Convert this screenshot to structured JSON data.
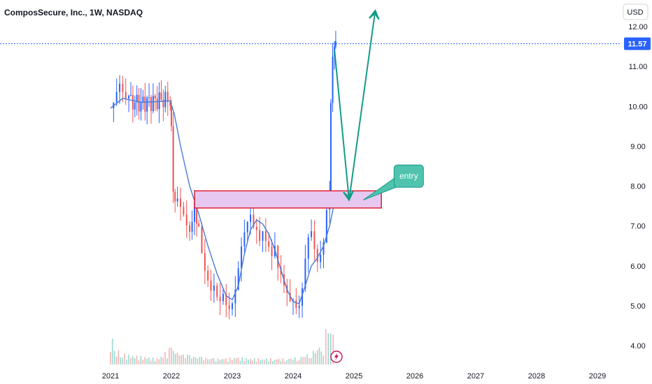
{
  "header": {
    "title": "ComposSecure, Inc., 1W, NASDAQ",
    "currency": "USD"
  },
  "colors": {
    "up": "#2962ff",
    "down": "#ef5350",
    "ma": "#4a7bd6",
    "volume_up": "#9ad9cf",
    "volume_down": "#f6b5b5",
    "zone_fill": "#e6c8f0",
    "zone_border": "#e0202e",
    "arrow": "#139c87",
    "callout": "#4fc3ae",
    "last_price_line": "#2962ff",
    "flash_icon": "#c2185b"
  },
  "flash_icon": "lightning-icon",
  "chart_data": {
    "type": "candlestick",
    "title": "ComposSecure, Inc., 1W, NASDAQ",
    "x_ticks": [
      "2021",
      "2022",
      "2023",
      "2024",
      "2025",
      "2026",
      "2027",
      "2028",
      "2029"
    ],
    "y_ticks": [
      "4.00",
      "5.00",
      "6.00",
      "7.00",
      "8.00",
      "9.00",
      "10.00",
      "11.00",
      "12.00"
    ],
    "ylim": [
      3.7,
      12.5
    ],
    "xlim": [
      2020.6,
      2029.4
    ],
    "last_price": 11.57,
    "last_price_label": "11.57",
    "grid": false,
    "price_path": [
      [
        2021.0,
        9.95
      ],
      [
        2021.05,
        10.1
      ],
      [
        2021.1,
        10.3
      ],
      [
        2021.15,
        10.45
      ],
      [
        2021.2,
        10.2
      ],
      [
        2021.25,
        10.0
      ],
      [
        2021.3,
        10.05
      ],
      [
        2021.4,
        10.1
      ],
      [
        2021.5,
        10.05
      ],
      [
        2021.6,
        10.1
      ],
      [
        2021.7,
        10.1
      ],
      [
        2021.8,
        10.15
      ],
      [
        2021.9,
        10.15
      ],
      [
        2021.98,
        10.15
      ],
      [
        2022.0,
        9.6
      ],
      [
        2022.03,
        8.0
      ],
      [
        2022.06,
        7.8
      ],
      [
        2022.1,
        7.9
      ],
      [
        2022.15,
        7.7
      ],
      [
        2022.2,
        7.5
      ],
      [
        2022.25,
        7.2
      ],
      [
        2022.3,
        7.0
      ],
      [
        2022.38,
        7.4
      ],
      [
        2022.45,
        6.8
      ],
      [
        2022.5,
        6.3
      ],
      [
        2022.55,
        5.8
      ],
      [
        2022.6,
        5.5
      ],
      [
        2022.65,
        5.2
      ],
      [
        2022.7,
        5.3
      ],
      [
        2022.75,
        5.0
      ],
      [
        2022.8,
        4.9
      ],
      [
        2022.85,
        5.1
      ],
      [
        2022.9,
        4.85
      ],
      [
        2022.95,
        4.8
      ],
      [
        2023.0,
        5.0
      ],
      [
        2023.05,
        5.4
      ],
      [
        2023.1,
        6.0
      ],
      [
        2023.15,
        6.6
      ],
      [
        2023.2,
        7.0
      ],
      [
        2023.25,
        7.3
      ],
      [
        2023.3,
        7.5
      ],
      [
        2023.35,
        7.2
      ],
      [
        2023.4,
        7.1
      ],
      [
        2023.45,
        6.8
      ],
      [
        2023.5,
        7.0
      ],
      [
        2023.55,
        6.7
      ],
      [
        2023.6,
        6.5
      ],
      [
        2023.65,
        6.2
      ],
      [
        2023.7,
        6.4
      ],
      [
        2023.75,
        5.8
      ],
      [
        2023.8,
        5.6
      ],
      [
        2023.85,
        5.3
      ],
      [
        2023.9,
        5.1
      ],
      [
        2023.95,
        4.9
      ],
      [
        2024.0,
        4.95
      ],
      [
        2024.05,
        4.8
      ],
      [
        2024.1,
        4.9
      ],
      [
        2024.15,
        5.4
      ],
      [
        2024.2,
        6.2
      ],
      [
        2024.25,
        6.8
      ],
      [
        2024.3,
        7.0
      ],
      [
        2024.35,
        6.6
      ],
      [
        2024.4,
        6.3
      ],
      [
        2024.45,
        6.5
      ],
      [
        2024.5,
        6.8
      ],
      [
        2024.55,
        7.6
      ],
      [
        2024.6,
        8.0
      ],
      [
        2024.62,
        10.2
      ],
      [
        2024.65,
        11.3
      ],
      [
        2024.68,
        11.5
      ],
      [
        2024.7,
        11.57
      ]
    ],
    "moving_average": [
      [
        2021.0,
        9.95
      ],
      [
        2021.2,
        10.2
      ],
      [
        2021.5,
        10.1
      ],
      [
        2021.8,
        10.12
      ],
      [
        2021.98,
        10.14
      ],
      [
        2022.05,
        9.8
      ],
      [
        2022.15,
        9.0
      ],
      [
        2022.3,
        8.0
      ],
      [
        2022.45,
        7.3
      ],
      [
        2022.6,
        6.5
      ],
      [
        2022.75,
        5.8
      ],
      [
        2022.9,
        5.25
      ],
      [
        2023.0,
        5.15
      ],
      [
        2023.1,
        5.5
      ],
      [
        2023.2,
        6.3
      ],
      [
        2023.3,
        6.9
      ],
      [
        2023.4,
        7.15
      ],
      [
        2023.5,
        7.05
      ],
      [
        2023.6,
        6.8
      ],
      [
        2023.7,
        6.4
      ],
      [
        2023.8,
        5.9
      ],
      [
        2023.9,
        5.4
      ],
      [
        2024.0,
        5.1
      ],
      [
        2024.1,
        5.05
      ],
      [
        2024.2,
        5.5
      ],
      [
        2024.3,
        6.0
      ],
      [
        2024.4,
        6.2
      ],
      [
        2024.5,
        6.5
      ],
      [
        2024.6,
        7.0
      ],
      [
        2024.68,
        7.6
      ]
    ],
    "volume": [
      [
        2021.0,
        0.5,
        1
      ],
      [
        2021.1,
        0.25,
        0
      ],
      [
        2021.2,
        0.18,
        1
      ],
      [
        2021.4,
        0.15,
        0
      ],
      [
        2021.6,
        0.12,
        1
      ],
      [
        2021.8,
        0.1,
        0
      ],
      [
        2022.0,
        0.3,
        1
      ],
      [
        2022.1,
        0.2,
        0
      ],
      [
        2022.3,
        0.15,
        1
      ],
      [
        2022.5,
        0.12,
        0
      ],
      [
        2022.7,
        0.1,
        1
      ],
      [
        2022.9,
        0.1,
        0
      ],
      [
        2023.1,
        0.12,
        1
      ],
      [
        2023.3,
        0.1,
        0
      ],
      [
        2023.5,
        0.1,
        1
      ],
      [
        2023.7,
        0.1,
        0
      ],
      [
        2023.9,
        0.1,
        1
      ],
      [
        2024.1,
        0.12,
        0
      ],
      [
        2024.3,
        0.2,
        1
      ],
      [
        2024.5,
        0.35,
        0
      ],
      [
        2024.62,
        1.0,
        1
      ],
      [
        2024.66,
        0.8,
        1
      ],
      [
        2024.7,
        0.5,
        0
      ]
    ],
    "drawings": {
      "zone": {
        "x1": 2022.38,
        "x2": 2025.45,
        "y1": 7.45,
        "y2": 7.88
      },
      "arrow_path": [
        [
          2024.68,
          11.4
        ],
        [
          2024.92,
          7.65
        ],
        [
          2025.35,
          12.4
        ]
      ],
      "callout": {
        "text": "entry",
        "anchor": [
          2025.15,
          7.65
        ],
        "box": [
          2025.9,
          8.25
        ]
      }
    }
  }
}
